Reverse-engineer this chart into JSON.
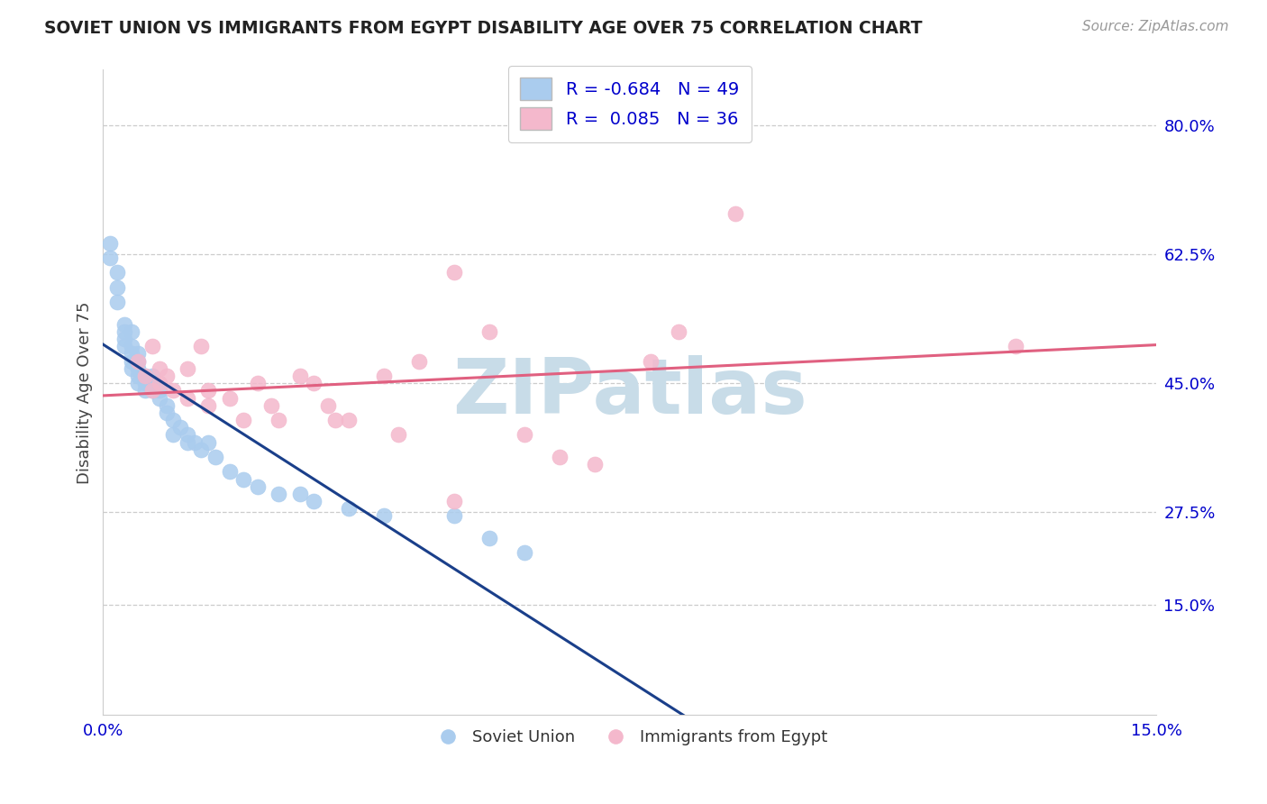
{
  "title": "SOVIET UNION VS IMMIGRANTS FROM EGYPT DISABILITY AGE OVER 75 CORRELATION CHART",
  "source_text": "Source: ZipAtlas.com",
  "ylabel": "Disability Age Over 75",
  "color_soviet": "#aaccee",
  "color_egypt": "#f4b8cc",
  "color_soviet_line": "#1a3f8a",
  "color_egypt_line": "#e06080",
  "watermark_color": "#c8dce8",
  "background_color": "#ffffff",
  "grid_color": "#cccccc",
  "xlim": [
    0.0,
    0.15
  ],
  "ylim": [
    0.0,
    0.875
  ],
  "y_ticks": [
    0.15,
    0.275,
    0.45,
    0.625,
    0.8
  ],
  "y_tick_labels": [
    "15.0%",
    "27.5%",
    "45.0%",
    "62.5%",
    "80.0%"
  ],
  "x_ticks": [
    0.0,
    0.15
  ],
  "x_tick_labels": [
    "0.0%",
    "15.0%"
  ],
  "legend_r1": "-0.684",
  "legend_n1": "49",
  "legend_r2": "0.085",
  "legend_n2": "36",
  "soviet_points": [
    [
      0.001,
      0.64
    ],
    [
      0.001,
      0.62
    ],
    [
      0.002,
      0.6
    ],
    [
      0.002,
      0.58
    ],
    [
      0.002,
      0.56
    ],
    [
      0.003,
      0.53
    ],
    [
      0.003,
      0.52
    ],
    [
      0.003,
      0.51
    ],
    [
      0.003,
      0.5
    ],
    [
      0.004,
      0.52
    ],
    [
      0.004,
      0.5
    ],
    [
      0.004,
      0.49
    ],
    [
      0.004,
      0.48
    ],
    [
      0.004,
      0.47
    ],
    [
      0.005,
      0.49
    ],
    [
      0.005,
      0.48
    ],
    [
      0.005,
      0.47
    ],
    [
      0.005,
      0.46
    ],
    [
      0.005,
      0.45
    ],
    [
      0.006,
      0.46
    ],
    [
      0.006,
      0.45
    ],
    [
      0.006,
      0.44
    ],
    [
      0.007,
      0.46
    ],
    [
      0.007,
      0.45
    ],
    [
      0.007,
      0.44
    ],
    [
      0.008,
      0.44
    ],
    [
      0.008,
      0.43
    ],
    [
      0.009,
      0.42
    ],
    [
      0.009,
      0.41
    ],
    [
      0.01,
      0.4
    ],
    [
      0.01,
      0.38
    ],
    [
      0.011,
      0.39
    ],
    [
      0.012,
      0.38
    ],
    [
      0.012,
      0.37
    ],
    [
      0.013,
      0.37
    ],
    [
      0.014,
      0.36
    ],
    [
      0.015,
      0.37
    ],
    [
      0.016,
      0.35
    ],
    [
      0.018,
      0.33
    ],
    [
      0.02,
      0.32
    ],
    [
      0.022,
      0.31
    ],
    [
      0.025,
      0.3
    ],
    [
      0.028,
      0.3
    ],
    [
      0.03,
      0.29
    ],
    [
      0.035,
      0.28
    ],
    [
      0.04,
      0.27
    ],
    [
      0.05,
      0.27
    ],
    [
      0.055,
      0.24
    ],
    [
      0.06,
      0.22
    ]
  ],
  "egypt_points": [
    [
      0.005,
      0.48
    ],
    [
      0.006,
      0.46
    ],
    [
      0.007,
      0.44
    ],
    [
      0.007,
      0.5
    ],
    [
      0.008,
      0.47
    ],
    [
      0.008,
      0.45
    ],
    [
      0.009,
      0.46
    ],
    [
      0.01,
      0.44
    ],
    [
      0.012,
      0.47
    ],
    [
      0.012,
      0.43
    ],
    [
      0.014,
      0.5
    ],
    [
      0.015,
      0.44
    ],
    [
      0.015,
      0.42
    ],
    [
      0.018,
      0.43
    ],
    [
      0.02,
      0.4
    ],
    [
      0.022,
      0.45
    ],
    [
      0.024,
      0.42
    ],
    [
      0.025,
      0.4
    ],
    [
      0.028,
      0.46
    ],
    [
      0.03,
      0.45
    ],
    [
      0.032,
      0.42
    ],
    [
      0.033,
      0.4
    ],
    [
      0.035,
      0.4
    ],
    [
      0.04,
      0.46
    ],
    [
      0.042,
      0.38
    ],
    [
      0.045,
      0.48
    ],
    [
      0.05,
      0.6
    ],
    [
      0.05,
      0.29
    ],
    [
      0.055,
      0.52
    ],
    [
      0.06,
      0.38
    ],
    [
      0.065,
      0.35
    ],
    [
      0.07,
      0.34
    ],
    [
      0.078,
      0.48
    ],
    [
      0.082,
      0.52
    ],
    [
      0.09,
      0.68
    ],
    [
      0.13,
      0.5
    ]
  ]
}
